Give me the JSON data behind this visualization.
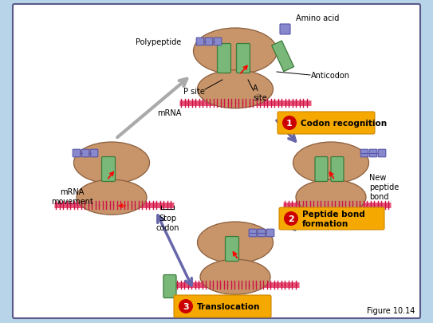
{
  "background_color": "#b8d4e8",
  "panel_color": "#ffffff",
  "panel_border_color": "#5a5a8a",
  "title_text": "Figure 10.14",
  "labels": {
    "amino_acid": "Amino acid",
    "polypeptide": "Polypeptide",
    "p_site": "P site",
    "a_site": "A\nsite",
    "anticodon": "Anticodon",
    "mrna": "mRNA",
    "codon_recognition": "Codon recognition",
    "peptide_bond": "Peptide bond\nformation",
    "translocation": "Translocation",
    "stop_codon": "Stop\ncodon",
    "mrna_movement": "mRNA\nmovement",
    "new_peptide_bond": "New\npeptide\nbond"
  },
  "step_colors": {
    "step_bg": "#f5a800",
    "step_circle": "#cc0000"
  },
  "ribosome_color": "#c8956a",
  "ribosome_outline": "#8b5e3c",
  "trna_color": "#7ab87a",
  "trna_outline": "#3a7a3a",
  "mrna_color": "#e8557a",
  "mrna_outline": "#b02050",
  "arrow_color": "#6666aa",
  "gray_arrow_color": "#aaaaaa",
  "polypeptide_color": "#8888cc",
  "font_size_label": 7,
  "font_size_step": 7.5,
  "font_size_figure": 7
}
